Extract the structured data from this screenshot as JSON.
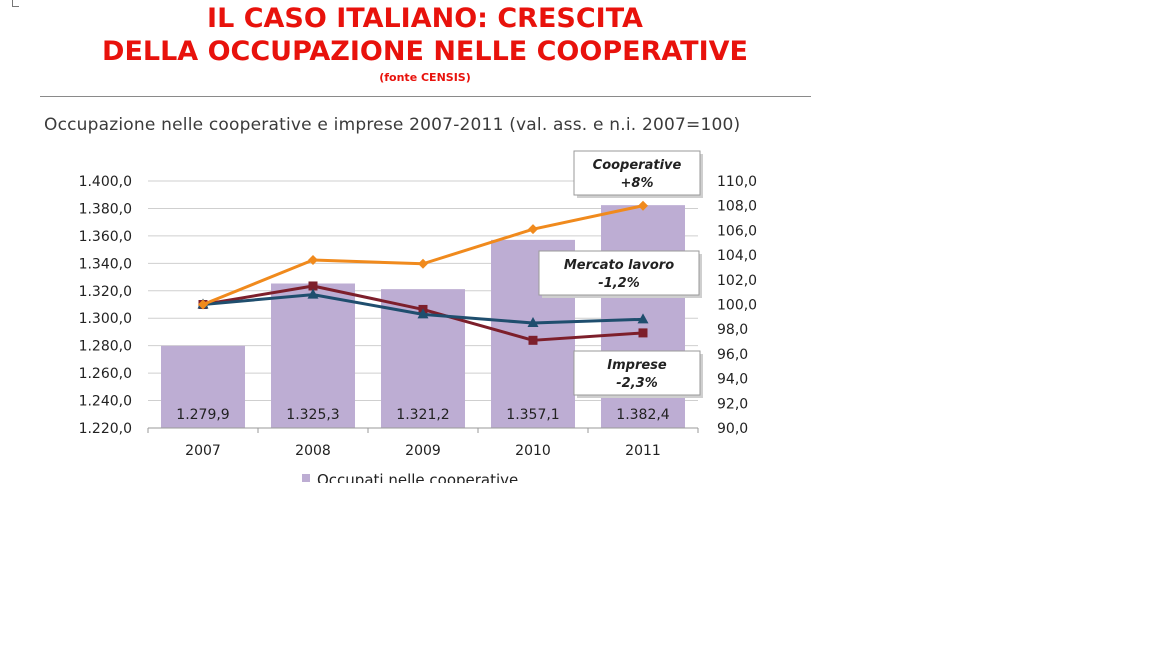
{
  "slide": {
    "title_line1": "IL CASO ITALIANO: CRESCITA",
    "title_line2": "DELLA OCCUPAZIONE NELLE COOPERATIVE",
    "source": "(fonte CENSIS)"
  },
  "chart_data": {
    "type": "bar",
    "title": "Occupazione nelle cooperative e imprese 2007-2011 (val. ass. e n.i. 2007=100)",
    "categories": [
      "2007",
      "2008",
      "2009",
      "2010",
      "2011"
    ],
    "bars": {
      "name": "Occupati nelle cooperative",
      "values": [
        1279.9,
        1325.3,
        1321.2,
        1357.1,
        1382.4
      ],
      "labels": [
        "1.279,9",
        "1.325,3",
        "1.321,2",
        "1.357,1",
        "1.382,4"
      ],
      "color": "#bdadd3"
    },
    "y_left": {
      "ylim": [
        1220,
        1400
      ],
      "ticks": [
        "1.220,0",
        "1.240,0",
        "1.260,0",
        "1.280,0",
        "1.300,0",
        "1.320,0",
        "1.340,0",
        "1.360,0",
        "1.380,0",
        "1.400,0"
      ]
    },
    "y_right": {
      "ylim": [
        90,
        110
      ],
      "ticks": [
        "90,0",
        "92,0",
        "94,0",
        "96,0",
        "98,0",
        "100,0",
        "102,0",
        "104,0",
        "106,0",
        "108,0",
        "110,0"
      ]
    },
    "series": [
      {
        "key": "cooperative",
        "axis": "right",
        "values": [
          100.0,
          103.6,
          103.3,
          106.1,
          108.0
        ],
        "color": "#f08a1d",
        "marker": "diamond"
      },
      {
        "key": "imprese",
        "axis": "right",
        "values": [
          100.0,
          101.5,
          99.6,
          97.1,
          97.7
        ],
        "color": "#7d1f2b",
        "marker": "square"
      },
      {
        "key": "mercato",
        "axis": "right",
        "values": [
          100.0,
          100.8,
          99.2,
          98.5,
          98.8
        ],
        "color": "#1f4e6e",
        "marker": "triangle"
      }
    ],
    "callouts": [
      {
        "key": "cooperative",
        "line1": "Cooperative",
        "line2": "+8%"
      },
      {
        "key": "mercato",
        "line1": "Mercato lavoro",
        "line2": "-1,2%"
      },
      {
        "key": "imprese",
        "line1": "Imprese",
        "line2": "-2,3%"
      }
    ],
    "grid": true,
    "legend_position": "bottom"
  }
}
